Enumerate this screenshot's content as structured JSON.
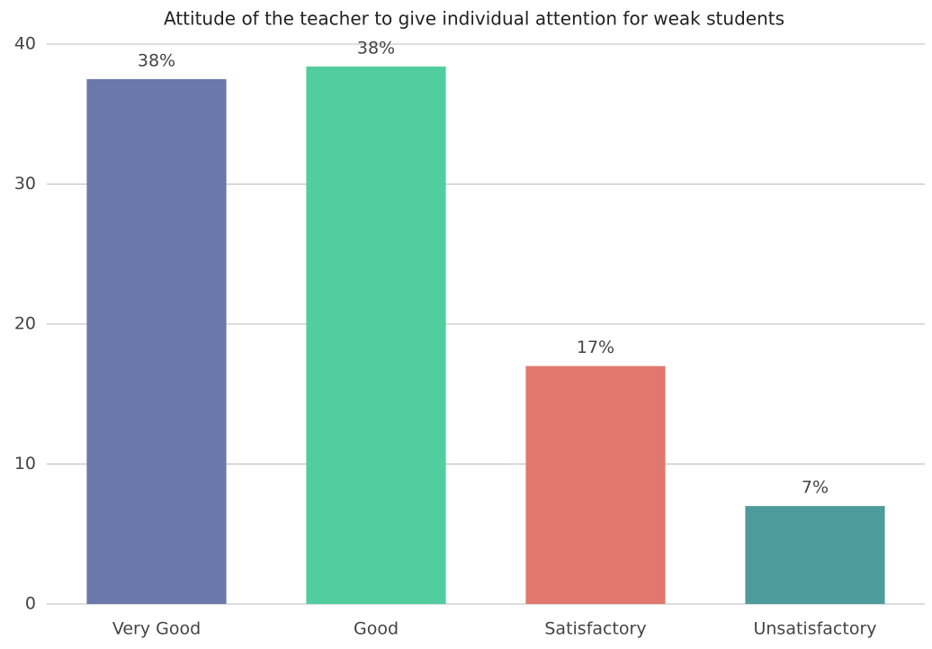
{
  "chart_data": {
    "type": "bar",
    "title": "Attitude of the teacher to give individual attention for weak students",
    "categories": [
      "Very Good",
      "Good",
      "Satisfactory",
      "Unsatisfactory"
    ],
    "values": [
      37.5,
      38.4,
      17,
      7
    ],
    "value_labels": [
      "38%",
      "38%",
      "17%",
      "7%"
    ],
    "colors": [
      "#6b78aa",
      "#52cd9f",
      "#e07870",
      "#4e9b9c"
    ],
    "ylim": [
      0,
      40
    ],
    "yticks": [
      0,
      10,
      20,
      30,
      40
    ],
    "grid": true
  }
}
